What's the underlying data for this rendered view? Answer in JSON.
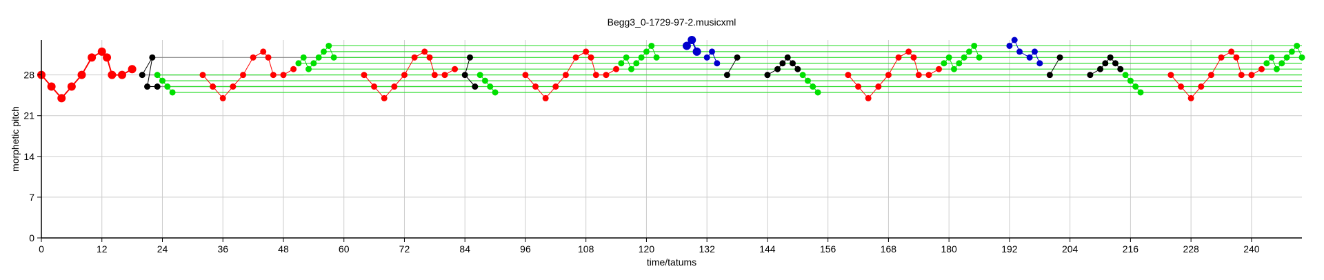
{
  "chart_data": {
    "type": "scatter",
    "title": "Begg3_0-1729-97-2.musicxml",
    "xlabel": "time/tatums",
    "ylabel": "morphetic pitch",
    "xlim": [
      0,
      250
    ],
    "ylim": [
      0,
      34
    ],
    "xticks": [
      0,
      12,
      24,
      36,
      48,
      60,
      72,
      84,
      96,
      108,
      120,
      132,
      144,
      156,
      168,
      180,
      192,
      204,
      216,
      228,
      240
    ],
    "yticks": [
      0,
      7,
      14,
      21,
      28
    ],
    "grid": true,
    "colors": {
      "red": "#ff0000",
      "green": "#00e000",
      "black": "#000000",
      "blue": "#0000cc",
      "grid": "#cccccc",
      "connector_green": "#33dd33",
      "connector_grey": "#888888"
    },
    "series": [
      {
        "color": "red",
        "big": true,
        "x": [
          0,
          2,
          4,
          6,
          8,
          10,
          12,
          13,
          14,
          16,
          18
        ],
        "y": [
          28,
          26,
          24,
          26,
          28,
          31,
          32,
          31,
          28,
          28,
          29
        ]
      },
      {
        "color": "red",
        "x": [
          32,
          34,
          36,
          38,
          40,
          42,
          44,
          45,
          46,
          48,
          50
        ],
        "y": [
          28,
          26,
          24,
          26,
          28,
          31,
          32,
          31,
          28,
          28,
          29
        ]
      },
      {
        "color": "red",
        "x": [
          64,
          66,
          68,
          70,
          72,
          74,
          76,
          77,
          78,
          80,
          82
        ],
        "y": [
          28,
          26,
          24,
          26,
          28,
          31,
          32,
          31,
          28,
          28,
          29
        ]
      },
      {
        "color": "red",
        "x": [
          96,
          98,
          100,
          102,
          104,
          106,
          108,
          109,
          110,
          112,
          114
        ],
        "y": [
          28,
          26,
          24,
          26,
          28,
          31,
          32,
          31,
          28,
          28,
          29
        ]
      },
      {
        "color": "red",
        "x": [
          160,
          162,
          164,
          166,
          168,
          170,
          172,
          173,
          174,
          176,
          178
        ],
        "y": [
          28,
          26,
          24,
          26,
          28,
          31,
          32,
          31,
          28,
          28,
          29
        ]
      },
      {
        "color": "red",
        "x": [
          224,
          226,
          228,
          230,
          232,
          234,
          236,
          237,
          238,
          240,
          242
        ],
        "y": [
          28,
          26,
          24,
          26,
          28,
          31,
          32,
          31,
          28,
          28,
          29
        ]
      },
      {
        "color": "black",
        "x": [
          20,
          22,
          21,
          23
        ],
        "y": [
          28,
          31,
          26,
          26
        ]
      },
      {
        "color": "green",
        "x": [
          23,
          24,
          25,
          26
        ],
        "y": [
          28,
          27,
          26,
          25
        ]
      },
      {
        "color": "green",
        "x": [
          51,
          52,
          53,
          54,
          55,
          56,
          57,
          58
        ],
        "y": [
          30,
          31,
          29,
          30,
          31,
          32,
          33,
          31
        ]
      },
      {
        "color": "black",
        "x": [
          85,
          84,
          86
        ],
        "y": [
          31,
          28,
          26
        ]
      },
      {
        "color": "green",
        "x": [
          87,
          88,
          89,
          90
        ],
        "y": [
          28,
          27,
          26,
          25
        ]
      },
      {
        "color": "green",
        "x": [
          115,
          116,
          117,
          118,
          119,
          120,
          121,
          122
        ],
        "y": [
          30,
          31,
          29,
          30,
          31,
          32,
          33,
          31
        ]
      },
      {
        "color": "blue",
        "big": true,
        "x": [
          128,
          129,
          130
        ],
        "y": [
          33,
          34,
          32
        ]
      },
      {
        "color": "blue",
        "x": [
          132,
          133,
          134
        ],
        "y": [
          31,
          32,
          30
        ]
      },
      {
        "color": "black",
        "x": [
          136,
          138
        ],
        "y": [
          28,
          31
        ]
      },
      {
        "color": "black",
        "x": [
          144,
          146,
          147,
          148,
          149,
          150
        ],
        "y": [
          28,
          29,
          30,
          31,
          30,
          29
        ]
      },
      {
        "color": "green",
        "x": [
          151,
          152,
          153,
          154
        ],
        "y": [
          28,
          27,
          26,
          25
        ]
      },
      {
        "color": "green",
        "x": [
          179,
          180,
          181,
          182,
          183,
          184,
          185,
          186
        ],
        "y": [
          30,
          31,
          29,
          30,
          31,
          32,
          33,
          31
        ]
      },
      {
        "color": "blue",
        "x": [
          192,
          193,
          194,
          196,
          197,
          198
        ],
        "y": [
          33,
          34,
          32,
          31,
          32,
          30
        ]
      },
      {
        "color": "black",
        "x": [
          200,
          202
        ],
        "y": [
          28,
          31
        ]
      },
      {
        "color": "black",
        "x": [
          208,
          210,
          211,
          212,
          213,
          214
        ],
        "y": [
          28,
          29,
          30,
          31,
          30,
          29
        ]
      },
      {
        "color": "green",
        "x": [
          215,
          216,
          217,
          218
        ],
        "y": [
          28,
          27,
          26,
          25
        ]
      },
      {
        "color": "green",
        "x": [
          243,
          244,
          245,
          246,
          247,
          248,
          249,
          250
        ],
        "y": [
          30,
          31,
          29,
          30,
          31,
          32,
          33,
          31
        ]
      }
    ],
    "connectors": [
      {
        "color": "connector_grey",
        "x": [
          20,
          52
        ],
        "y": [
          28,
          28
        ]
      },
      {
        "color": "connector_grey",
        "x": [
          22,
          86
        ],
        "y": [
          31,
          31
        ]
      },
      {
        "color": "connector_grey",
        "x": [
          21,
          85
        ],
        "y": [
          26,
          26
        ]
      },
      {
        "color": "connector_green",
        "x": [
          23,
          250
        ],
        "y": [
          28,
          28
        ]
      },
      {
        "color": "connector_green",
        "x": [
          24,
          250
        ],
        "y": [
          27,
          27
        ]
      },
      {
        "color": "connector_green",
        "x": [
          25,
          250
        ],
        "y": [
          26,
          26
        ]
      },
      {
        "color": "connector_green",
        "x": [
          26,
          250
        ],
        "y": [
          25,
          25
        ]
      },
      {
        "color": "connector_green",
        "x": [
          51,
          250
        ],
        "y": [
          30,
          30
        ]
      },
      {
        "color": "connector_green",
        "x": [
          53,
          250
        ],
        "y": [
          29,
          29
        ]
      },
      {
        "color": "connector_green",
        "x": [
          55,
          250
        ],
        "y": [
          31,
          31
        ]
      },
      {
        "color": "connector_green",
        "x": [
          56,
          250
        ],
        "y": [
          32,
          32
        ]
      },
      {
        "color": "connector_green",
        "x": [
          57,
          250
        ],
        "y": [
          33,
          33
        ]
      }
    ]
  }
}
